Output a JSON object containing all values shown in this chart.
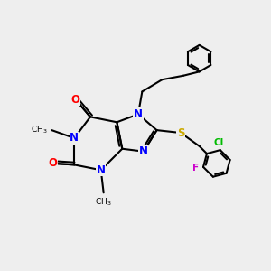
{
  "background_color": "#eeeeee",
  "bond_color": "#000000",
  "bond_width": 1.5,
  "atom_colors": {
    "N": "#0000ff",
    "O": "#ff0000",
    "S": "#ccaa00",
    "Cl": "#00bb00",
    "F": "#cc00cc"
  },
  "font_size": 8.5,
  "fig_size": [
    3.0,
    3.0
  ],
  "dpi": 100
}
